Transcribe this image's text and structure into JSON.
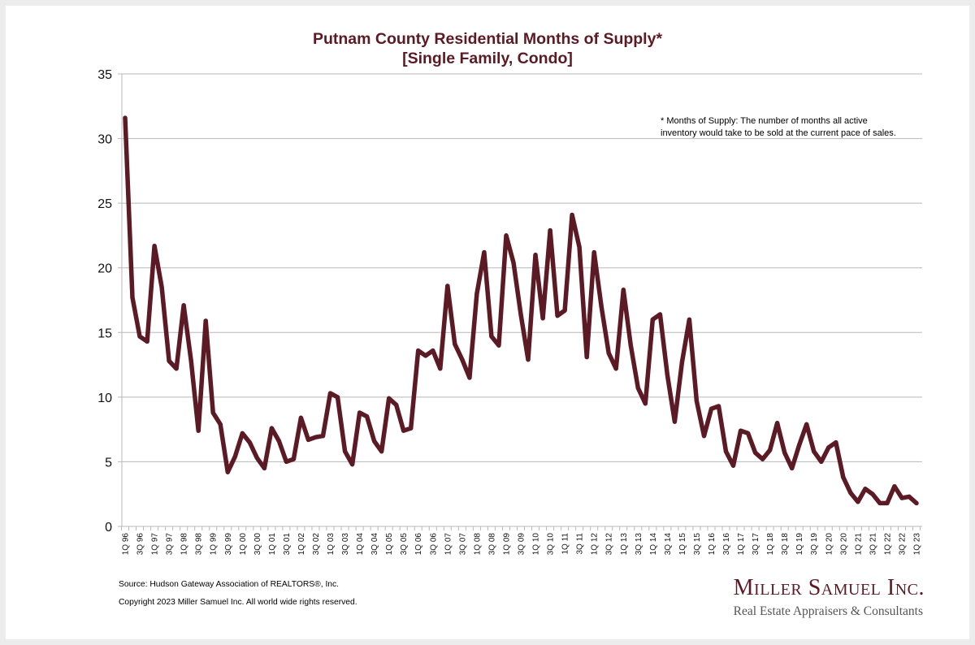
{
  "colors": {
    "line": "#5c1a24",
    "title": "#5c1a24",
    "grid": "#b8b8b8",
    "frame": "#ececec"
  },
  "note": {
    "line1": "* Months of Supply: The number of months all active",
    "line2": "inventory would take to be sold at the current pace of sales."
  },
  "footer": {
    "source": "Source: Hudson Gateway Association of REALTORS®, Inc.",
    "copyright": "Copyright 2023 Miller Samuel Inc.  All world wide rights reserved."
  },
  "logo": {
    "name": "Miller Samuel Inc.",
    "tagline": "Real Estate Appraisers & Consultants"
  },
  "chart_data": {
    "type": "line",
    "title": "Putnam County Residential Months of Supply*",
    "subtitle": "[Single Family, Condo]",
    "xlabel": "",
    "ylabel": "",
    "ylim": [
      0,
      35
    ],
    "yticks": [
      0,
      5,
      10,
      15,
      20,
      25,
      30,
      35
    ],
    "grid": true,
    "legend": "none",
    "x": [
      "1Q 96",
      "2Q 96",
      "3Q 96",
      "4Q 96",
      "1Q 97",
      "2Q 97",
      "3Q 97",
      "4Q 97",
      "1Q 98",
      "2Q 98",
      "3Q 98",
      "4Q 98",
      "1Q 99",
      "2Q 99",
      "3Q 99",
      "4Q 99",
      "1Q 00",
      "2Q 00",
      "3Q 00",
      "4Q 00",
      "1Q 01",
      "2Q 01",
      "3Q 01",
      "4Q 01",
      "1Q 02",
      "2Q 02",
      "3Q 02",
      "4Q 02",
      "1Q 03",
      "2Q 03",
      "3Q 03",
      "4Q 03",
      "1Q 04",
      "2Q 04",
      "3Q 04",
      "4Q 04",
      "1Q 05",
      "2Q 05",
      "3Q 05",
      "4Q 05",
      "1Q 06",
      "2Q 06",
      "3Q 06",
      "4Q 06",
      "1Q 07",
      "2Q 07",
      "3Q 07",
      "4Q 07",
      "1Q 08",
      "2Q 08",
      "3Q 08",
      "4Q 08",
      "1Q 09",
      "2Q 09",
      "3Q 09",
      "4Q 09",
      "1Q 10",
      "2Q 10",
      "3Q 10",
      "4Q 10",
      "1Q 11",
      "2Q 11",
      "3Q 11",
      "4Q 11",
      "1Q 12",
      "2Q 12",
      "3Q 12",
      "4Q 12",
      "1Q 13",
      "2Q 13",
      "3Q 13",
      "4Q 13",
      "1Q 14",
      "2Q 14",
      "3Q 14",
      "4Q 14",
      "1Q 15",
      "2Q 15",
      "3Q 15",
      "4Q 15",
      "1Q 16",
      "2Q 16",
      "3Q 16",
      "4Q 16",
      "1Q 17",
      "2Q 17",
      "3Q 17",
      "4Q 17",
      "1Q 18",
      "2Q 18",
      "3Q 18",
      "4Q 18",
      "1Q 19",
      "2Q 19",
      "3Q 19",
      "4Q 19",
      "1Q 20",
      "2Q 20",
      "3Q 20",
      "4Q 20",
      "1Q 21",
      "2Q 21",
      "3Q 21",
      "4Q 21",
      "1Q 22",
      "2Q 22",
      "3Q 22",
      "4Q 22",
      "1Q 23"
    ],
    "tick_labels": [
      "1Q 96",
      "3Q 96",
      "1Q 97",
      "3Q 97",
      "1Q 98",
      "3Q 98",
      "1Q 99",
      "3Q 99",
      "1Q 00",
      "3Q 00",
      "1Q 01",
      "3Q 01",
      "1Q 02",
      "3Q 02",
      "1Q 03",
      "3Q 03",
      "1Q 04",
      "3Q 04",
      "1Q 05",
      "3Q 05",
      "1Q 06",
      "3Q 06",
      "1Q 07",
      "3Q 07",
      "1Q 08",
      "3Q 08",
      "1Q 09",
      "3Q 09",
      "1Q 10",
      "3Q 10",
      "1Q 11",
      "3Q 11",
      "1Q 12",
      "3Q 12",
      "1Q 13",
      "3Q 13",
      "1Q 14",
      "3Q 14",
      "1Q 15",
      "3Q 15",
      "1Q 16",
      "3Q 16",
      "1Q 17",
      "3Q 17",
      "1Q 18",
      "3Q 18",
      "1Q 19",
      "3Q 19",
      "1Q 20",
      "3Q 20",
      "1Q 21",
      "3Q 21",
      "1Q 22",
      "3Q 22",
      "1Q 23"
    ],
    "series": [
      {
        "name": "Months of Supply",
        "values": [
          31.6,
          17.7,
          14.7,
          14.3,
          21.7,
          18.5,
          12.8,
          12.2,
          17.1,
          12.8,
          7.4,
          15.9,
          8.8,
          7.9,
          4.2,
          5.4,
          7.2,
          6.5,
          5.3,
          4.5,
          7.6,
          6.6,
          5.0,
          5.2,
          8.4,
          6.7,
          6.9,
          7.0,
          10.3,
          10.0,
          5.8,
          4.8,
          8.8,
          8.5,
          6.6,
          5.8,
          9.9,
          9.4,
          7.4,
          7.6,
          13.6,
          13.2,
          13.6,
          12.2,
          18.6,
          14.1,
          12.9,
          11.5,
          18.0,
          21.2,
          14.7,
          14.0,
          22.5,
          20.4,
          16.4,
          12.9,
          21.0,
          16.1,
          22.9,
          16.3,
          16.7,
          24.1,
          21.6,
          13.1,
          21.2,
          17.0,
          13.4,
          12.2,
          18.3,
          14.0,
          10.7,
          9.5,
          16.0,
          16.4,
          11.7,
          8.1,
          12.7,
          16.0,
          9.7,
          7.0,
          9.1,
          9.3,
          5.8,
          4.7,
          7.4,
          7.2,
          5.7,
          5.2,
          5.9,
          8.0,
          5.7,
          4.5,
          6.3,
          7.9,
          5.8,
          5.0,
          6.1,
          6.5,
          3.8,
          2.6,
          1.9,
          2.9,
          2.5,
          1.8,
          1.8,
          3.1,
          2.2,
          2.3,
          1.8
        ]
      }
    ]
  }
}
